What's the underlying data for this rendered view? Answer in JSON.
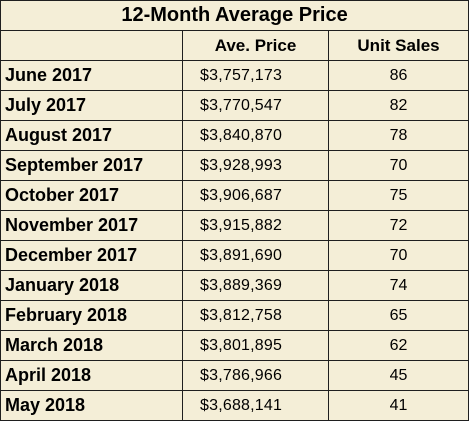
{
  "title": "12-Month Average Price",
  "headers": {
    "month": "",
    "price": "Ave. Price",
    "sales": "Unit Sales"
  },
  "rows": [
    {
      "month": "June 2017",
      "price": "$3,757,173",
      "sales": "86"
    },
    {
      "month": "July 2017",
      "price": "$3,770,547",
      "sales": "82"
    },
    {
      "month": "August 2017",
      "price": "$3,840,870",
      "sales": "78"
    },
    {
      "month": "September 2017",
      "price": "$3,928,993",
      "sales": "70"
    },
    {
      "month": "October 2017",
      "price": "$3,906,687",
      "sales": "75"
    },
    {
      "month": "November 2017",
      "price": "$3,915,882",
      "sales": "72"
    },
    {
      "month": "December 2017",
      "price": "$3,891,690",
      "sales": "70"
    },
    {
      "month": "January 2018",
      "price": "$3,889,369",
      "sales": "74"
    },
    {
      "month": "February 2018",
      "price": "$3,812,758",
      "sales": "65"
    },
    {
      "month": "March 2018",
      "price": "$3,801,895",
      "sales": "62"
    },
    {
      "month": "April 2018",
      "price": "$3,786,966",
      "sales": "45"
    },
    {
      "month": "May 2018",
      "price": "$3,688,141",
      "sales": "41"
    }
  ],
  "colors": {
    "background": "#f4eed7",
    "border": "#1f1f1f",
    "text": "#000000"
  }
}
